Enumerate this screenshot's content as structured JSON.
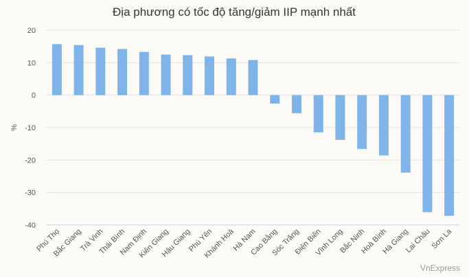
{
  "chart_data": {
    "type": "bar",
    "title": "Địa phương có tốc độ tăng/giảm IIP mạnh nhất",
    "ylabel": "%",
    "xlabel": "",
    "ylim": [
      -40,
      20
    ],
    "yticks": [
      20,
      10,
      0,
      -10,
      -20,
      -30,
      -40
    ],
    "grid": true,
    "categories": [
      "Phú Thọ",
      "Bắc Giang",
      "Trà Vinh",
      "Thái Bình",
      "Nam Định",
      "Kiên Giang",
      "Hậu Giang",
      "Phú Yên",
      "Khánh Hoà",
      "Hà Nam",
      "Cao Bằng",
      "Sóc Trăng",
      "Điện Biên",
      "Vĩnh Long",
      "Bắc Ninh",
      "Hoà Bình",
      "Hà Giang",
      "Lai Châu",
      "Sơn La"
    ],
    "values": [
      15.7,
      15.4,
      14.6,
      14.2,
      13.3,
      12.5,
      12.3,
      11.9,
      11.3,
      10.8,
      -2.6,
      -5.6,
      -11.5,
      -13.8,
      -16.6,
      -18.6,
      -23.9,
      -36.1,
      -37.2
    ],
    "bar_color": "#7fb4ea"
  },
  "credit": "VnExpress"
}
